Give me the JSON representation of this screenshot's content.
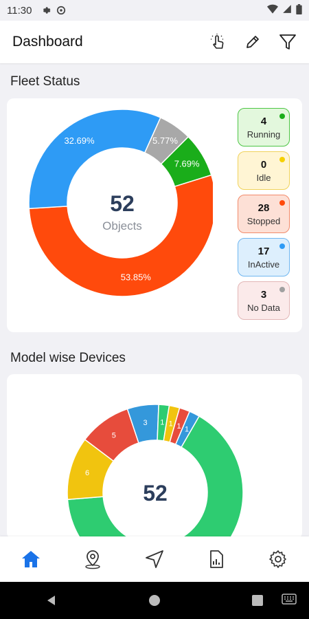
{
  "status_bar": {
    "time": "11:30",
    "icons": [
      "gear-icon",
      "cast-icon",
      "wifi-icon",
      "cell-signal-icon",
      "battery-icon"
    ]
  },
  "app_bar": {
    "title": "Dashboard",
    "actions": [
      "touch-gesture-icon",
      "edit-pencil-icon",
      "filter-icon"
    ]
  },
  "fleet_status": {
    "title": "Fleet Status",
    "center_value": "52",
    "center_label": "Objects",
    "chart_data": {
      "type": "pie",
      "categories": [
        "Running",
        "Idle",
        "Stopped",
        "InActive",
        "No Data"
      ],
      "values": [
        4,
        0,
        28,
        17,
        3
      ],
      "colors": [
        "#1aad1a",
        "#f5c518",
        "#ff4a0c",
        "#2e9bf5",
        "#a8a8a8"
      ],
      "labels": [
        "7.69%",
        "",
        "53.85%",
        "32.69%",
        "5.77%"
      ]
    },
    "legend": [
      {
        "count": "4",
        "label": "Running",
        "bg": "#e3f8dd",
        "border": "#4cc544",
        "dot": "#1aad1a"
      },
      {
        "count": "0",
        "label": "Idle",
        "bg": "#fff5d4",
        "border": "#f0d25a",
        "dot": "#f5d000"
      },
      {
        "count": "28",
        "label": "Stopped",
        "bg": "#fde0d6",
        "border": "#f28a6a",
        "dot": "#ff4a0c"
      },
      {
        "count": "17",
        "label": "InActive",
        "bg": "#ddeffd",
        "border": "#6fb6f0",
        "dot": "#2e9bf5"
      },
      {
        "count": "3",
        "label": "No Data",
        "bg": "#fbeaea",
        "border": "#e2b6b6",
        "dot": "#a0a0a0"
      }
    ]
  },
  "model_devices": {
    "title": "Model wise Devices",
    "center_value": "52",
    "chart_data": {
      "type": "pie",
      "values": [
        34,
        6,
        5,
        3,
        1,
        1,
        1,
        1
      ],
      "colors": [
        "#2ecc71",
        "#f1c40f",
        "#e74c3c",
        "#3498db",
        "#2ecc71",
        "#f1c40f",
        "#e74c3c",
        "#3498db"
      ],
      "labels": [
        "",
        "6",
        "5",
        "3",
        "1",
        "1",
        "1",
        "1"
      ]
    }
  },
  "bottom_nav": {
    "items": [
      "home-icon",
      "location-pin-icon",
      "navigation-arrow-icon",
      "report-icon",
      "settings-icon"
    ],
    "active": 0,
    "active_color": "#1a73e8"
  }
}
